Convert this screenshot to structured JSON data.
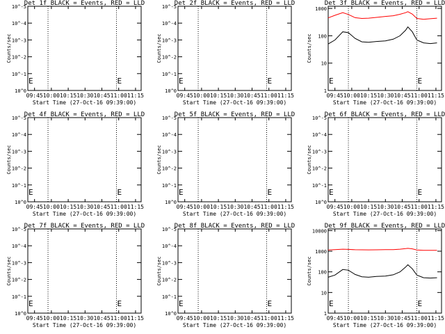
{
  "chart_data": [
    {
      "type": "line",
      "title": "Det 1f BLACK = Events, RED = LLD",
      "xlabel": "Start Time (27-Oct-16 09:39:00)",
      "ylabel": "Counts/sec",
      "x_tick_labels": [
        "09:45",
        "10:00",
        "10:15",
        "10:30",
        "10:45",
        "11:00",
        "11:15"
      ],
      "x_tick_times": [
        "09:45",
        "10:00",
        "10:15",
        "10:30",
        "10:45",
        "11:00",
        "11:15"
      ],
      "xlim": [
        "09:39",
        "11:20"
      ],
      "y_scale": "log",
      "y_tick_labels": [
        "10^0",
        "10^-1",
        "10^-2",
        "10^-3",
        "10^-4",
        "10^-5"
      ],
      "y_tick_values": [
        1,
        0.1,
        0.01,
        0.001,
        0.0001,
        1e-05
      ],
      "ylim": [
        1,
        1e-05
      ],
      "vlines": [
        "09:57",
        "10:58"
      ],
      "markers": [
        {
          "time": "09:39",
          "label": "E"
        },
        {
          "time": "10:58",
          "label": "E"
        }
      ],
      "series": []
    },
    {
      "type": "line",
      "title": "Det 2f BLACK = Events, RED = LLD",
      "xlabel": "Start Time (27-Oct-16 09:39:00)",
      "ylabel": "Counts/sec",
      "x_tick_labels": [
        "09:45",
        "10:00",
        "10:15",
        "10:30",
        "10:45",
        "11:00",
        "11:15"
      ],
      "x_tick_times": [
        "09:45",
        "10:00",
        "10:15",
        "10:30",
        "10:45",
        "11:00",
        "11:15"
      ],
      "xlim": [
        "09:39",
        "11:20"
      ],
      "y_scale": "log",
      "y_tick_labels": [
        "10^0",
        "10^-1",
        "10^-2",
        "10^-3",
        "10^-4",
        "10^-5"
      ],
      "y_tick_values": [
        1,
        0.1,
        0.01,
        0.001,
        0.0001,
        1e-05
      ],
      "ylim": [
        1,
        1e-05
      ],
      "vlines": [
        "09:57",
        "10:58"
      ],
      "markers": [
        {
          "time": "09:39",
          "label": "E"
        },
        {
          "time": "10:58",
          "label": "E"
        }
      ],
      "series": []
    },
    {
      "type": "line",
      "title": "Det 3f BLACK = Events, RED = LLD",
      "xlabel": "Start Time (27-Oct-16 09:39:00)",
      "ylabel": "Counts/sec",
      "x_tick_labels": [
        "09:45",
        "10:00",
        "10:15",
        "10:30",
        "10:45",
        "11:00",
        "11:15"
      ],
      "x_tick_times": [
        "09:45",
        "10:00",
        "10:15",
        "10:30",
        "10:45",
        "11:00",
        "11:15"
      ],
      "xlim": [
        "09:39",
        "11:20"
      ],
      "y_scale": "log",
      "y_tick_labels": [
        "1",
        "10",
        "100",
        "1000"
      ],
      "y_tick_values": [
        1,
        10,
        100,
        1000
      ],
      "ylim": [
        1,
        1200
      ],
      "vlines": [
        "09:57",
        "10:58"
      ],
      "markers": [
        {
          "time": "09:39",
          "label": "E"
        },
        {
          "time": "10:58",
          "label": "E"
        }
      ],
      "series": [
        {
          "color": "#ff0000",
          "x": [
            "09:39",
            "09:45",
            "09:52",
            "09:57",
            "10:03",
            "10:09",
            "10:15",
            "10:22",
            "10:30",
            "10:37",
            "10:43",
            "10:48",
            "10:50",
            "10:54",
            "10:58",
            "11:04",
            "11:10",
            "11:16"
          ],
          "y": [
            450,
            560,
            700,
            600,
            460,
            430,
            440,
            470,
            510,
            540,
            610,
            700,
            760,
            620,
            430,
            400,
            420,
            440
          ]
        },
        {
          "color": "#000000",
          "x": [
            "09:39",
            "09:45",
            "09:52",
            "09:57",
            "10:03",
            "10:09",
            "10:15",
            "10:22",
            "10:30",
            "10:37",
            "10:43",
            "10:48",
            "10:50",
            "10:54",
            "10:58",
            "11:04",
            "11:10",
            "11:16"
          ],
          "y": [
            50,
            70,
            140,
            130,
            80,
            60,
            58,
            62,
            65,
            75,
            100,
            160,
            210,
            140,
            70,
            55,
            52,
            55
          ]
        }
      ]
    },
    {
      "type": "line",
      "title": "Det 4f BLACK = Events, RED = LLD",
      "xlabel": "Start Time (27-Oct-16 09:39:00)",
      "ylabel": "Counts/sec",
      "x_tick_labels": [
        "09:45",
        "10:00",
        "10:15",
        "10:30",
        "10:45",
        "11:00",
        "11:15"
      ],
      "x_tick_times": [
        "09:45",
        "10:00",
        "10:15",
        "10:30",
        "10:45",
        "11:00",
        "11:15"
      ],
      "xlim": [
        "09:39",
        "11:20"
      ],
      "y_scale": "log",
      "y_tick_labels": [
        "10^0",
        "10^-1",
        "10^-2",
        "10^-3",
        "10^-4",
        "10^-5"
      ],
      "y_tick_values": [
        1,
        0.1,
        0.01,
        0.001,
        0.0001,
        1e-05
      ],
      "ylim": [
        1,
        1e-05
      ],
      "vlines": [
        "09:57",
        "10:58"
      ],
      "markers": [
        {
          "time": "09:39",
          "label": "E"
        },
        {
          "time": "10:58",
          "label": "E"
        }
      ],
      "series": []
    },
    {
      "type": "line",
      "title": "Det 5f BLACK = Events, RED = LLD",
      "xlabel": "Start Time (27-Oct-16 09:39:00)",
      "ylabel": "Counts/sec",
      "x_tick_labels": [
        "09:45",
        "10:00",
        "10:15",
        "10:30",
        "10:45",
        "11:00",
        "11:15"
      ],
      "x_tick_times": [
        "09:45",
        "10:00",
        "10:15",
        "10:30",
        "10:45",
        "11:00",
        "11:15"
      ],
      "xlim": [
        "09:39",
        "11:20"
      ],
      "y_scale": "log",
      "y_tick_labels": [
        "10^0",
        "10^-1",
        "10^-2",
        "10^-3",
        "10^-4",
        "10^-5"
      ],
      "y_tick_values": [
        1,
        0.1,
        0.01,
        0.001,
        0.0001,
        1e-05
      ],
      "ylim": [
        1,
        1e-05
      ],
      "vlines": [
        "09:57",
        "10:58"
      ],
      "markers": [
        {
          "time": "09:39",
          "label": "E"
        },
        {
          "time": "10:58",
          "label": "E"
        }
      ],
      "series": []
    },
    {
      "type": "line",
      "title": "Det 6f BLACK = Events, RED = LLD",
      "xlabel": "Start Time (27-Oct-16 09:39:00)",
      "ylabel": "Counts/sec",
      "x_tick_labels": [
        "09:45",
        "10:00",
        "10:15",
        "10:30",
        "10:45",
        "11:00",
        "11:15"
      ],
      "x_tick_times": [
        "09:45",
        "10:00",
        "10:15",
        "10:30",
        "10:45",
        "11:00",
        "11:15"
      ],
      "xlim": [
        "09:39",
        "11:20"
      ],
      "y_scale": "log",
      "y_tick_labels": [
        "10^0",
        "10^-1",
        "10^-2",
        "10^-3",
        "10^-4",
        "10^-5"
      ],
      "y_tick_values": [
        1,
        0.1,
        0.01,
        0.001,
        0.0001,
        1e-05
      ],
      "ylim": [
        1,
        1e-05
      ],
      "vlines": [
        "09:57",
        "10:58"
      ],
      "markers": [
        {
          "time": "09:39",
          "label": "E"
        },
        {
          "time": "10:58",
          "label": "E"
        }
      ],
      "series": []
    },
    {
      "type": "line",
      "title": "Det 7f BLACK = Events, RED = LLD",
      "xlabel": "Start Time (27-Oct-16 09:39:00)",
      "ylabel": "Counts/sec",
      "x_tick_labels": [
        "09:45",
        "10:00",
        "10:15",
        "10:30",
        "10:45",
        "11:00",
        "11:15"
      ],
      "x_tick_times": [
        "09:45",
        "10:00",
        "10:15",
        "10:30",
        "10:45",
        "11:00",
        "11:15"
      ],
      "xlim": [
        "09:39",
        "11:20"
      ],
      "y_scale": "log",
      "y_tick_labels": [
        "10^0",
        "10^-1",
        "10^-2",
        "10^-3",
        "10^-4",
        "10^-5"
      ],
      "y_tick_values": [
        1,
        0.1,
        0.01,
        0.001,
        0.0001,
        1e-05
      ],
      "ylim": [
        1,
        1e-05
      ],
      "vlines": [
        "09:57",
        "10:58"
      ],
      "markers": [
        {
          "time": "09:39",
          "label": "E"
        },
        {
          "time": "10:58",
          "label": "E"
        }
      ],
      "series": []
    },
    {
      "type": "line",
      "title": "Det 8f BLACK = Events, RED = LLD",
      "xlabel": "Start Time (27-Oct-16 09:39:00)",
      "ylabel": "Counts/sec",
      "x_tick_labels": [
        "09:45",
        "10:00",
        "10:15",
        "10:30",
        "10:45",
        "11:00",
        "11:15"
      ],
      "x_tick_times": [
        "09:45",
        "10:00",
        "10:15",
        "10:30",
        "10:45",
        "11:00",
        "11:15"
      ],
      "xlim": [
        "09:39",
        "11:20"
      ],
      "y_scale": "log",
      "y_tick_labels": [
        "10^0",
        "10^-1",
        "10^-2",
        "10^-3",
        "10^-4",
        "10^-5"
      ],
      "y_tick_values": [
        1,
        0.1,
        0.01,
        0.001,
        0.0001,
        1e-05
      ],
      "ylim": [
        1,
        1e-05
      ],
      "vlines": [
        "09:57",
        "10:58"
      ],
      "markers": [
        {
          "time": "09:39",
          "label": "E"
        },
        {
          "time": "10:58",
          "label": "E"
        }
      ],
      "series": []
    },
    {
      "type": "line",
      "title": "Det 9f BLACK = Events, RED = LLD",
      "xlabel": "Start Time (27-Oct-16 09:39:00)",
      "ylabel": "Counts/sec",
      "x_tick_labels": [
        "09:45",
        "10:00",
        "10:15",
        "10:30",
        "10:45",
        "11:00",
        "11:15"
      ],
      "x_tick_times": [
        "09:45",
        "10:00",
        "10:15",
        "10:30",
        "10:45",
        "11:00",
        "11:15"
      ],
      "xlim": [
        "09:39",
        "11:20"
      ],
      "y_scale": "log",
      "y_tick_labels": [
        "1",
        "10",
        "100",
        "1000",
        "10000"
      ],
      "y_tick_values": [
        1,
        10,
        100,
        1000,
        10000
      ],
      "ylim": [
        1,
        12000
      ],
      "vlines": [
        "09:57",
        "10:58"
      ],
      "markers": [
        {
          "time": "09:39",
          "label": "E"
        },
        {
          "time": "10:58",
          "label": "E"
        }
      ],
      "series": [
        {
          "color": "#ff0000",
          "x": [
            "09:39",
            "09:45",
            "09:52",
            "09:57",
            "10:03",
            "10:09",
            "10:15",
            "10:22",
            "10:30",
            "10:37",
            "10:43",
            "10:48",
            "10:50",
            "10:54",
            "10:58",
            "11:04",
            "11:10",
            "11:16"
          ],
          "y": [
            1150,
            1200,
            1250,
            1220,
            1180,
            1170,
            1160,
            1170,
            1190,
            1200,
            1250,
            1330,
            1380,
            1300,
            1150,
            1100,
            1100,
            1110
          ]
        },
        {
          "color": "#000000",
          "x": [
            "09:39",
            "09:45",
            "09:52",
            "09:57",
            "10:03",
            "10:09",
            "10:15",
            "10:22",
            "10:30",
            "10:37",
            "10:43",
            "10:48",
            "10:50",
            "10:54",
            "10:58",
            "11:04",
            "11:10",
            "11:16"
          ],
          "y": [
            55,
            70,
            130,
            120,
            75,
            58,
            55,
            60,
            62,
            72,
            100,
            170,
            220,
            140,
            70,
            52,
            50,
            52
          ]
        }
      ]
    }
  ]
}
